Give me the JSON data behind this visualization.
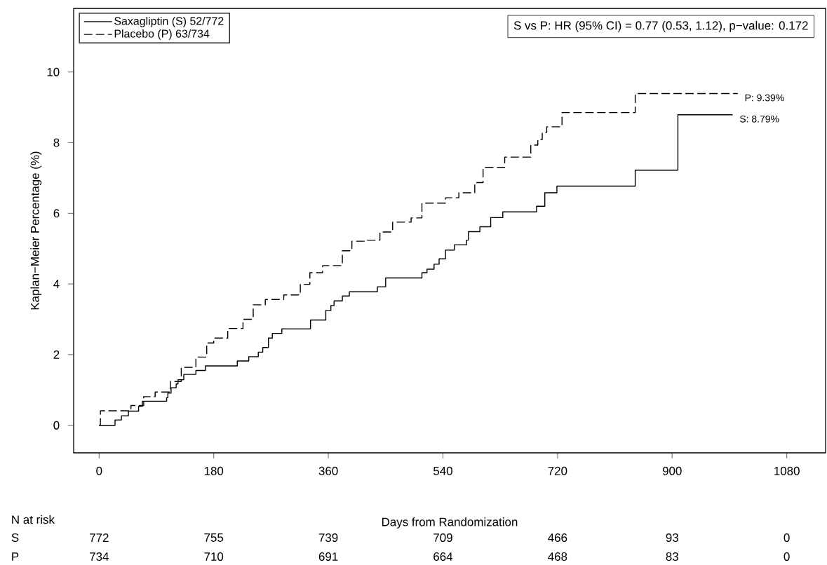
{
  "chart_data": {
    "type": "step",
    "xlabel": "Days from Randomization",
    "ylabel": "Kaplan−Meier Percentage (%)",
    "xlim": [
      -40,
      1141
    ],
    "ylim": [
      -0.78,
      11.8
    ],
    "xticks": [
      0,
      180,
      360,
      540,
      720,
      900,
      1080
    ],
    "yticks": [
      0,
      2,
      4,
      6,
      8,
      10
    ],
    "legend": "top left",
    "grid": false,
    "series": [
      {
        "name": "Saxagliptin (S)   52/772",
        "color": "#000000",
        "line_style": "solid",
        "x": [
          0,
          25,
          35,
          46,
          62,
          68,
          106,
          108,
          113,
          121,
          124,
          133,
          152,
          167,
          217,
          235,
          250,
          257,
          266,
          272,
          287,
          332,
          356,
          364,
          369,
          382,
          393,
          437,
          450,
          507,
          515,
          526,
          534,
          544,
          558,
          577,
          580,
          598,
          615,
          634,
          687,
          700,
          719,
          842,
          909,
          995
        ],
        "values": [
          0,
          0.15,
          0.27,
          0.4,
          0.54,
          0.68,
          0.78,
          0.91,
          1.06,
          1.17,
          1.29,
          1.44,
          1.55,
          1.68,
          1.82,
          1.94,
          2.07,
          2.2,
          2.47,
          2.6,
          2.73,
          2.98,
          3.25,
          3.39,
          3.52,
          3.66,
          3.78,
          3.92,
          4.17,
          4.32,
          4.42,
          4.56,
          4.71,
          4.96,
          5.11,
          5.24,
          5.48,
          5.62,
          5.88,
          6.04,
          6.2,
          6.58,
          6.77,
          7.22,
          8.79,
          8.79
        ]
      },
      {
        "name": "Placebo (P)      63/734",
        "color": "#000000",
        "line_style": "dashed",
        "x": [
          0,
          2,
          50,
          70,
          88,
          112,
          129,
          152,
          169,
          180,
          202,
          226,
          242,
          261,
          290,
          316,
          331,
          351,
          382,
          397,
          419,
          441,
          461,
          490,
          507,
          544,
          565,
          590,
          603,
          637,
          678,
          689,
          696,
          703,
          727,
          842,
          1003
        ],
        "values": [
          0,
          0.41,
          0.56,
          0.81,
          0.94,
          1.24,
          1.64,
          1.93,
          2.33,
          2.47,
          2.74,
          3.0,
          3.41,
          3.56,
          3.69,
          3.99,
          4.32,
          4.52,
          4.94,
          5.21,
          5.24,
          5.47,
          5.75,
          5.87,
          6.29,
          6.44,
          6.58,
          6.87,
          7.3,
          7.59,
          7.93,
          8.09,
          8.29,
          8.45,
          8.85,
          9.39,
          9.39
        ]
      }
    ],
    "annotations": [
      "S vs P: HR (95% CI)  =  0.77 (0.53, 1.12), p−value: 0.172",
      {
        "text": "P:   9.39%",
        "x": 1003,
        "y": 9.39
      },
      {
        "text": "S:   8.79%",
        "x": 995,
        "y": 8.79
      },
      "N at risk",
      "S",
      "772",
      "755",
      "739",
      "709",
      "466",
      "93",
      "0",
      "P",
      "734",
      "710",
      "691",
      "664",
      "468",
      "83",
      "0"
    ]
  }
}
